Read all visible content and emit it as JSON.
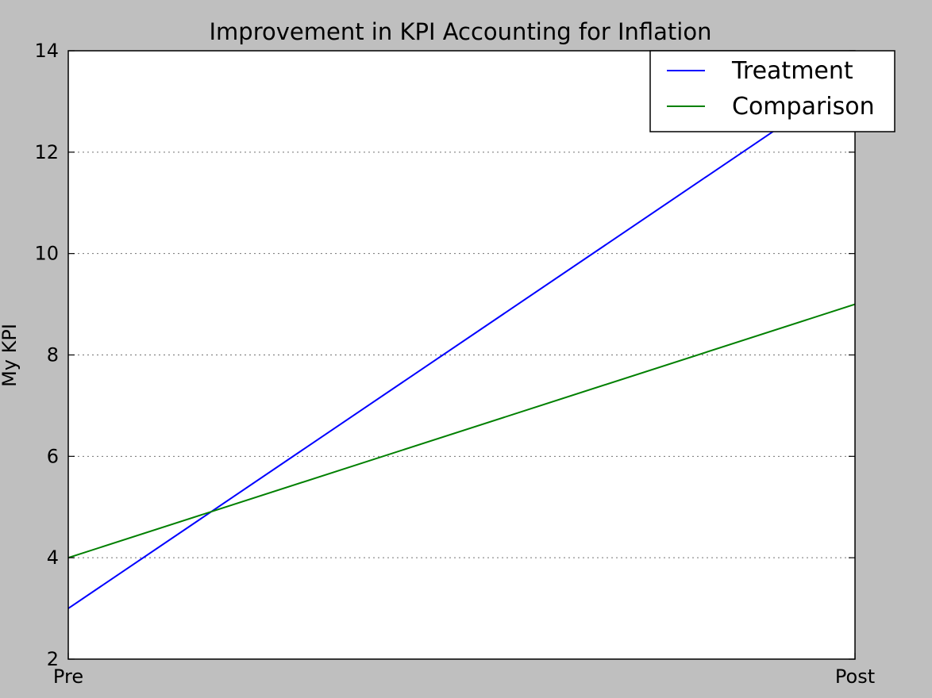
{
  "chart_data": {
    "type": "line",
    "title": "Improvement in KPI Accounting for Inflation",
    "xlabel": "",
    "ylabel": "My KPI",
    "categories": [
      "Pre",
      "Post"
    ],
    "series": [
      {
        "name": "Treatment",
        "values": [
          3,
          13.5
        ],
        "color": "#0000ff"
      },
      {
        "name": "Comparison",
        "values": [
          4,
          9
        ],
        "color": "#008000"
      }
    ],
    "ylim": [
      2,
      14
    ],
    "yticks": [
      2,
      4,
      6,
      8,
      10,
      12,
      14
    ],
    "grid": "y-dotted",
    "legend": {
      "position": "top-right"
    },
    "background": "#bfbfbf",
    "plot_background": "#ffffff"
  }
}
